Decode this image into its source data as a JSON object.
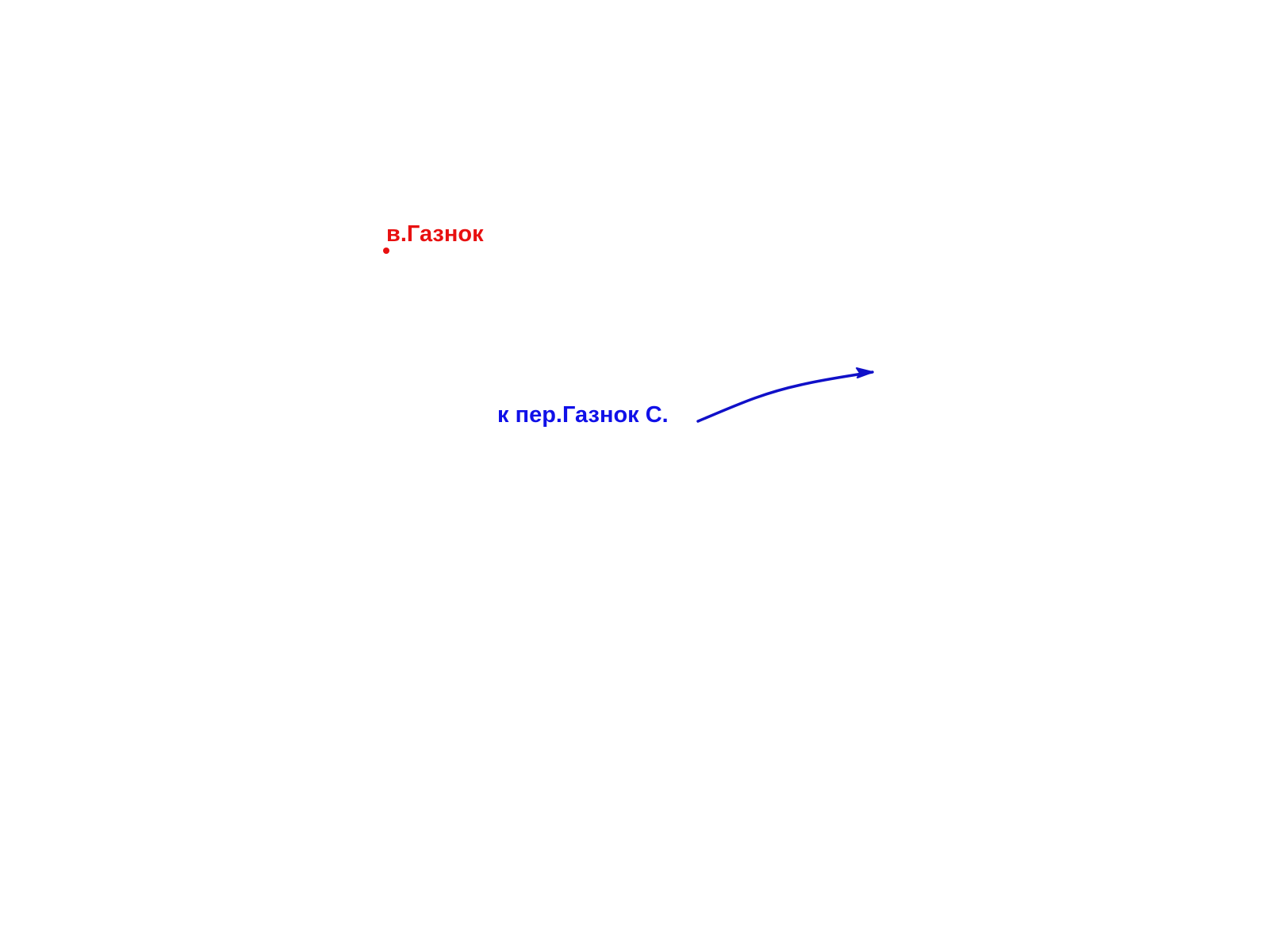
{
  "markers": [
    {
      "label": "в.Газнок"
    }
  ],
  "directions": [
    {
      "label": "к пер.Газнок С."
    }
  ]
}
